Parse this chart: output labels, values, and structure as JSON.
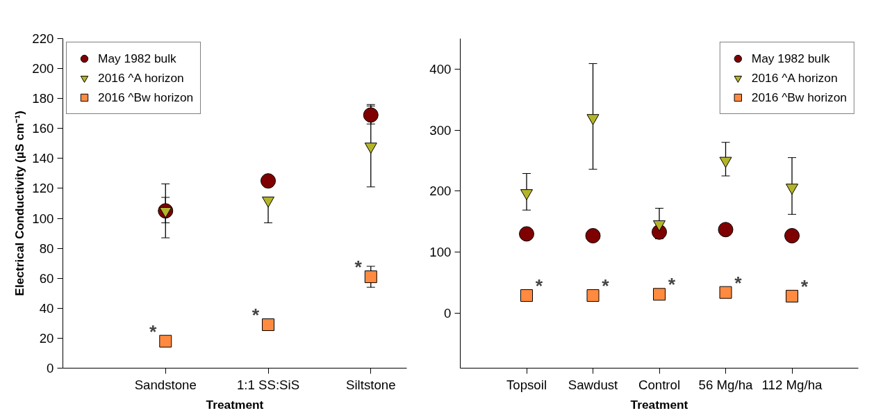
{
  "chart_data": [
    {
      "type": "scatter",
      "categories": [
        "Sandstone",
        "1:1 SS:SiS",
        "Siltstone"
      ],
      "xlabel": "Treatment",
      "ylabel": "Electrical Conductivity (µS cm⁻¹)",
      "ylim": [
        0,
        220
      ],
      "yticks": [
        0,
        20,
        40,
        60,
        80,
        100,
        120,
        140,
        160,
        180,
        200,
        220
      ],
      "legend": "top left",
      "grid": false,
      "series": [
        {
          "name": "May 1982 bulk",
          "color": "#7f0000",
          "marker": "circle",
          "values": [
            105,
            125,
            169
          ],
          "errors": [
            [
              97,
              114
            ],
            [
              121,
              129
            ],
            [
              163,
              176
            ]
          ]
        },
        {
          "name": "2016 ^A horizon",
          "color": "#b4b42a",
          "marker": "triangle",
          "values": [
            105,
            112,
            148
          ],
          "errors": [
            [
              87,
              123
            ],
            [
              97,
              112
            ],
            [
              121,
              175
            ]
          ]
        },
        {
          "name": "2016 ^Bw horizon",
          "color": "#ff8a40",
          "marker": "square",
          "values": [
            18,
            29,
            61
          ],
          "errors": [
            [
              16,
              21
            ],
            null,
            [
              54,
              68
            ]
          ]
        }
      ],
      "annotations": [
        {
          "text": "*",
          "x": "Sandstone",
          "y": 18
        },
        {
          "text": "*",
          "x": "1:1 SS:SiS",
          "y": 29
        },
        {
          "text": "*",
          "x": "Siltstone",
          "y": 61
        }
      ]
    },
    {
      "type": "scatter",
      "categories": [
        "Topsoil",
        "Sawdust",
        "Control",
        "56 Mg/ha",
        "112 Mg/ha"
      ],
      "xlabel": "Treatment",
      "ylim": [
        -90,
        450
      ],
      "yticks": [
        0,
        100,
        200,
        300,
        400
      ],
      "legend": "top right",
      "grid": false,
      "series": [
        {
          "name": "May 1982 bulk",
          "color": "#7f0000",
          "marker": "circle",
          "values": [
            130,
            127,
            133,
            137,
            127
          ],
          "errors": [
            null,
            null,
            null,
            null,
            null
          ]
        },
        {
          "name": "2016 ^A horizon",
          "color": "#b4b42a",
          "marker": "triangle",
          "values": [
            197,
            320,
            146,
            250,
            206
          ],
          "errors": [
            [
              169,
              229
            ],
            [
              236,
              409
            ],
            [
              122,
              172
            ],
            [
              225,
              280
            ],
            [
              162,
              255
            ]
          ]
        },
        {
          "name": "2016 ^Bw horizon",
          "color": "#ff8a40",
          "marker": "square",
          "values": [
            29,
            29,
            31,
            34,
            28
          ],
          "errors": [
            null,
            null,
            null,
            null,
            null
          ]
        }
      ],
      "annotations": [
        {
          "text": "*",
          "x": "Topsoil",
          "y": 29
        },
        {
          "text": "*",
          "x": "Sawdust",
          "y": 29
        },
        {
          "text": "*",
          "x": "Control",
          "y": 31
        },
        {
          "text": "*",
          "x": "56 Mg/ha",
          "y": 34
        },
        {
          "text": "*",
          "x": "112 Mg/ha",
          "y": 28
        }
      ]
    }
  ]
}
